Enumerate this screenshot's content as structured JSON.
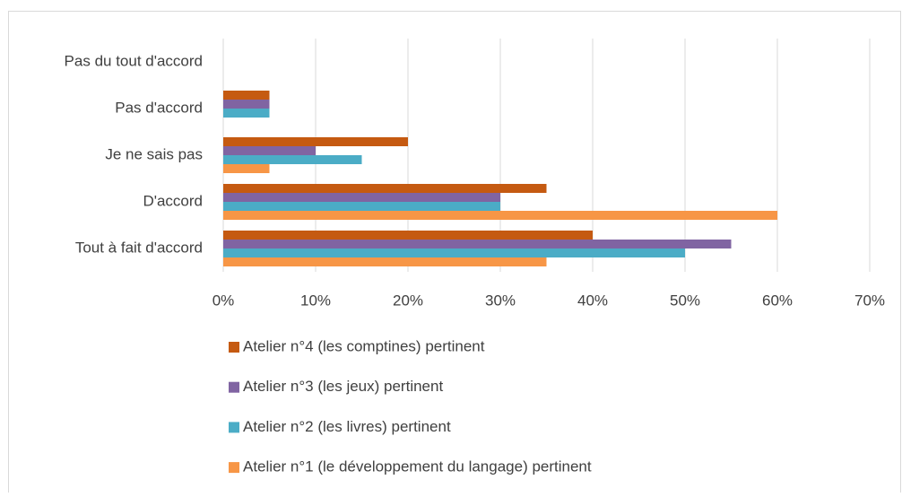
{
  "chart_data": {
    "type": "bar",
    "orientation": "horizontal",
    "categories": [
      "Pas du tout d'accord",
      "Pas d'accord",
      "Je ne sais pas",
      "D'accord",
      "Tout à fait d'accord"
    ],
    "series": [
      {
        "name": "Atelier n°4 (les comptines) pertinent",
        "color": "#c55a11",
        "values": [
          0,
          5,
          20,
          35,
          40
        ]
      },
      {
        "name": "Atelier n°3 (les jeux) pertinent",
        "color": "#8064a2",
        "values": [
          0,
          5,
          10,
          30,
          55
        ]
      },
      {
        "name": "Atelier n°2 (les livres) pertinent",
        "color": "#4bacc6",
        "values": [
          0,
          5,
          15,
          30,
          50
        ]
      },
      {
        "name": "Atelier n°1 (le développement du langage) pertinent",
        "color": "#f79646",
        "values": [
          0,
          0,
          5,
          60,
          35
        ]
      }
    ],
    "xlim": [
      0,
      70
    ],
    "xticks": [
      {
        "value": 0,
        "label": "0%"
      },
      {
        "value": 10,
        "label": "10%"
      },
      {
        "value": 20,
        "label": "20%"
      },
      {
        "value": 30,
        "label": "30%"
      },
      {
        "value": 40,
        "label": "40%"
      },
      {
        "value": 50,
        "label": "50%"
      },
      {
        "value": 60,
        "label": "60%"
      },
      {
        "value": 70,
        "label": "70%"
      }
    ],
    "grid": true,
    "legend": "bottom"
  }
}
